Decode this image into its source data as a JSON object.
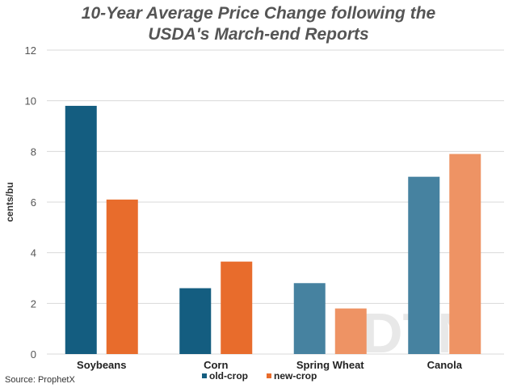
{
  "chart_data": {
    "type": "bar",
    "title_lines": [
      "10-Year Average Price Change following the",
      "USDA's March-end Reports"
    ],
    "ylabel": "cents/bu",
    "ylim": [
      0,
      12
    ],
    "yticks": [
      0,
      2,
      4,
      6,
      8,
      10,
      12
    ],
    "grid": true,
    "legend_position": "bottom",
    "categories": [
      "Soybeans",
      "Corn",
      "Spring Wheat",
      "Canola"
    ],
    "series": [
      {
        "name": "old-crop",
        "color": "#145d80",
        "values": [
          9.8,
          2.6,
          2.8,
          7.0
        ],
        "bar_colors": [
          "#145d80",
          "#145d80",
          "#4682a0",
          "#4682a0"
        ]
      },
      {
        "name": "new-crop",
        "color": "#e86c2c",
        "values": [
          6.1,
          3.65,
          1.8,
          7.9
        ],
        "bar_colors": [
          "#e86c2c",
          "#e86c2c",
          "#ee9364",
          "#ee9364"
        ]
      }
    ],
    "source": "Source: ProphetX",
    "watermark": "DTN"
  }
}
